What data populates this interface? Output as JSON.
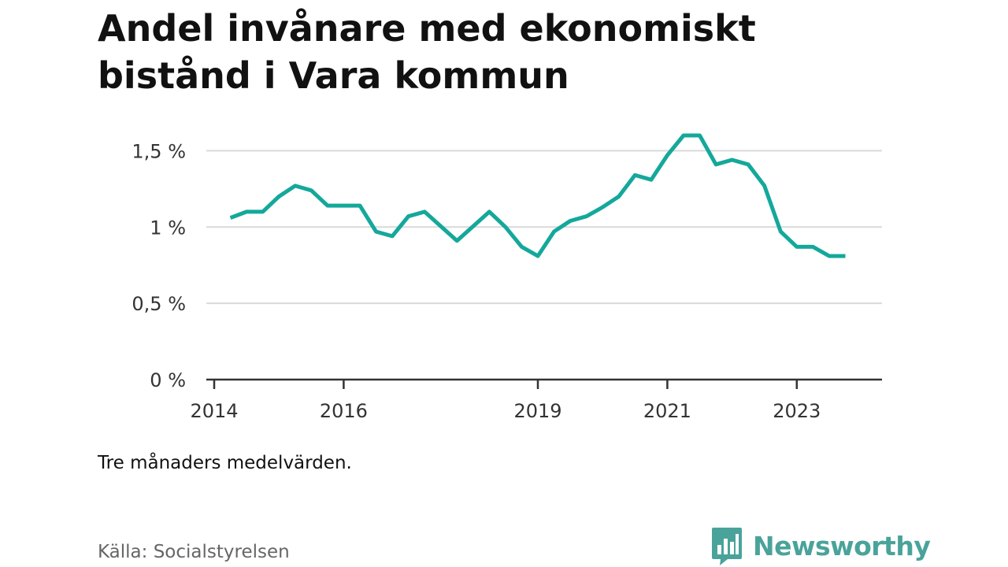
{
  "title": "Andel invånare med ekonomiskt bistånd i Vara kommun",
  "note": "Tre månaders medelvärden.",
  "source": "Källa: Socialstyrelsen",
  "brand": {
    "name": "Newsworthy",
    "icon": "bar-chart-speech-bubble-icon",
    "color": "#4aa39a"
  },
  "chart_data": {
    "type": "line",
    "title": "Andel invånare med ekonomiskt bistånd i Vara kommun",
    "xlabel": "",
    "ylabel": "",
    "ylim": [
      0,
      0.016
    ],
    "y_ticks": [
      {
        "value": 0,
        "label": "0 %"
      },
      {
        "value": 0.005,
        "label": "0,5 %"
      },
      {
        "value": 0.01,
        "label": "1 %"
      },
      {
        "value": 0.015,
        "label": "1,5 %"
      }
    ],
    "x_ticks": [
      "2014",
      "2016",
      "2019",
      "2021",
      "2023"
    ],
    "grid": true,
    "line_color": "#14a89b",
    "series": [
      {
        "values": [
          {
            "x": "2014-04",
            "y": 0.0106
          },
          {
            "x": "2014-07",
            "y": 0.011
          },
          {
            "x": "2014-10",
            "y": 0.011
          },
          {
            "x": "2015-01",
            "y": 0.012
          },
          {
            "x": "2015-04",
            "y": 0.0127
          },
          {
            "x": "2015-07",
            "y": 0.0124
          },
          {
            "x": "2015-10",
            "y": 0.0114
          },
          {
            "x": "2016-01",
            "y": 0.0114
          },
          {
            "x": "2016-04",
            "y": 0.0114
          },
          {
            "x": "2016-07",
            "y": 0.0097
          },
          {
            "x": "2016-10",
            "y": 0.0094
          },
          {
            "x": "2017-01",
            "y": 0.0107
          },
          {
            "x": "2017-04",
            "y": 0.011
          },
          {
            "x": "2017-10",
            "y": 0.0091
          },
          {
            "x": "2018-04",
            "y": 0.011
          },
          {
            "x": "2018-07",
            "y": 0.01
          },
          {
            "x": "2018-10",
            "y": 0.0087
          },
          {
            "x": "2019-01",
            "y": 0.0081
          },
          {
            "x": "2019-04",
            "y": 0.0097
          },
          {
            "x": "2019-07",
            "y": 0.0104
          },
          {
            "x": "2019-10",
            "y": 0.0107
          },
          {
            "x": "2020-01",
            "y": 0.0113
          },
          {
            "x": "2020-04",
            "y": 0.012
          },
          {
            "x": "2020-07",
            "y": 0.0134
          },
          {
            "x": "2020-10",
            "y": 0.0131
          },
          {
            "x": "2021-01",
            "y": 0.0147
          },
          {
            "x": "2021-04",
            "y": 0.016
          },
          {
            "x": "2021-07",
            "y": 0.016
          },
          {
            "x": "2021-10",
            "y": 0.0141
          },
          {
            "x": "2022-01",
            "y": 0.0144
          },
          {
            "x": "2022-04",
            "y": 0.0141
          },
          {
            "x": "2022-07",
            "y": 0.0127
          },
          {
            "x": "2022-10",
            "y": 0.0097
          },
          {
            "x": "2023-01",
            "y": 0.0087
          },
          {
            "x": "2023-04",
            "y": 0.0087
          },
          {
            "x": "2023-07",
            "y": 0.0081
          },
          {
            "x": "2023-10",
            "y": 0.0081
          }
        ]
      }
    ]
  }
}
